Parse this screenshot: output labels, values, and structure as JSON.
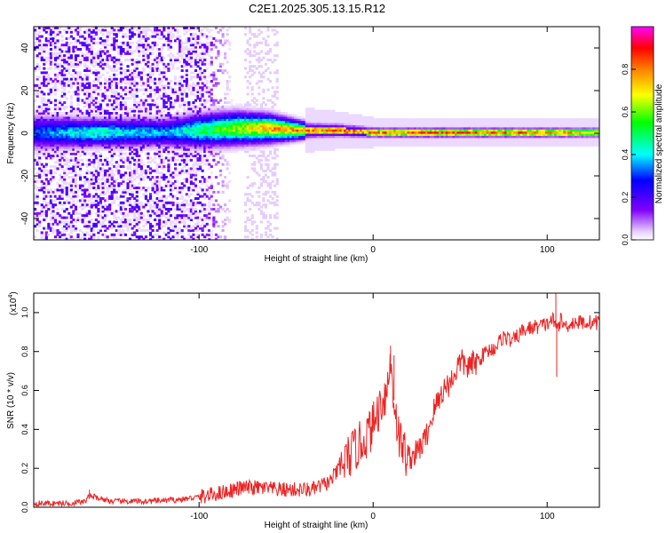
{
  "figure_title": "C2E1.2025.305.13.15.R12",
  "chart_data": [
    {
      "type": "heatmap",
      "title": "C2E1.2025.305.13.15.R12",
      "xlabel": "Height of straight line (km)",
      "ylabel": "Frequency (Hz)",
      "xlim": [
        -195,
        130
      ],
      "ylim": [
        -50,
        50
      ],
      "xticks": [
        -100,
        0,
        100
      ],
      "xtick_labels": [
        "-100",
        "0",
        "100"
      ],
      "yticks": [
        -40,
        -20,
        0,
        20,
        40
      ],
      "ytick_labels": [
        "-40",
        "-20",
        "0",
        "20",
        "40"
      ],
      "colorbar": {
        "label": "Normalized spectral amplitude",
        "range": [
          0,
          1
        ],
        "ticks": [
          0.0,
          0.2,
          0.4,
          0.6,
          0.8
        ],
        "tick_labels": [
          "0.0",
          "0.2",
          "0.4",
          "0.6",
          "0.8"
        ],
        "colors": [
          "#ffffff",
          "#e6ccff",
          "#8000ff",
          "#0000ff",
          "#00ffff",
          "#00ff00",
          "#ffff00",
          "#ff8000",
          "#ff0000",
          "#ff00ff"
        ]
      },
      "ridge": {
        "x": [
          -195,
          -160,
          -120,
          -100,
          -80,
          -60,
          -40,
          -20,
          0,
          20,
          60,
          100,
          130
        ],
        "f_center": [
          0,
          0,
          0,
          1,
          2,
          2,
          1,
          1,
          0,
          0,
          0,
          0,
          0
        ],
        "half_width": [
          6,
          5,
          5,
          6,
          6,
          5,
          3,
          2.5,
          2,
          2,
          2,
          2,
          2
        ],
        "peak_amplitude": [
          0.35,
          0.5,
          0.4,
          0.55,
          0.7,
          0.85,
          0.9,
          0.95,
          0.9,
          0.95,
          0.95,
          0.9,
          0.8
        ]
      },
      "noise_region_x": [
        -195,
        -100
      ],
      "noise_band_x": [
        -75,
        -55
      ]
    },
    {
      "type": "line",
      "xlabel": "Height of straight line (km)",
      "ylabel": "SNR (10 * v/v)",
      "multiplier_label": "(x10",
      "multiplier_exponent": "4",
      "multiplier_close": ")",
      "xlim": [
        -195,
        130
      ],
      "ylim": [
        0,
        1.1
      ],
      "xticks": [
        -100,
        0,
        100
      ],
      "xtick_labels": [
        "-100",
        "0",
        "100"
      ],
      "yticks": [
        0.0,
        0.2,
        0.4,
        0.6,
        0.8,
        1.0
      ],
      "ytick_labels": [
        "0.0",
        "0.2",
        "0.4",
        "0.6",
        "0.8",
        "1.0"
      ],
      "series": [
        {
          "name": "SNR",
          "color": "#ee2222",
          "x": [
            -195,
            -175,
            -165,
            -163,
            -150,
            -130,
            -110,
            -95,
            -85,
            -75,
            -65,
            -55,
            -45,
            -35,
            -25,
            -15,
            -10,
            -5,
            0,
            3,
            5,
            8,
            10,
            12,
            15,
            20,
            25,
            30,
            35,
            40,
            45,
            50,
            55,
            60,
            65,
            70,
            75,
            80,
            85,
            90,
            95,
            100,
            103,
            105,
            108,
            110,
            115,
            120,
            125,
            130
          ],
          "y": [
            0.02,
            0.02,
            0.03,
            0.06,
            0.03,
            0.03,
            0.04,
            0.06,
            0.08,
            0.1,
            0.1,
            0.09,
            0.09,
            0.09,
            0.13,
            0.25,
            0.3,
            0.35,
            0.42,
            0.5,
            0.55,
            0.6,
            0.75,
            0.55,
            0.35,
            0.25,
            0.28,
            0.35,
            0.5,
            0.6,
            0.65,
            0.75,
            0.72,
            0.75,
            0.8,
            0.82,
            0.88,
            0.85,
            0.9,
            0.92,
            0.93,
            0.94,
            0.97,
            0.92,
            0.96,
            0.93,
            0.95,
            0.95,
            0.95,
            0.95
          ],
          "spikes": [
            {
              "x": -163,
              "y": 0.09
            },
            {
              "x": 10,
              "y": 0.83
            },
            {
              "x": 105,
              "y": 1.1
            },
            {
              "x": 105.5,
              "y": 0.67
            },
            {
              "x": 7,
              "y": 0.6
            },
            {
              "x": 12,
              "y": 0.78
            }
          ]
        }
      ]
    }
  ]
}
